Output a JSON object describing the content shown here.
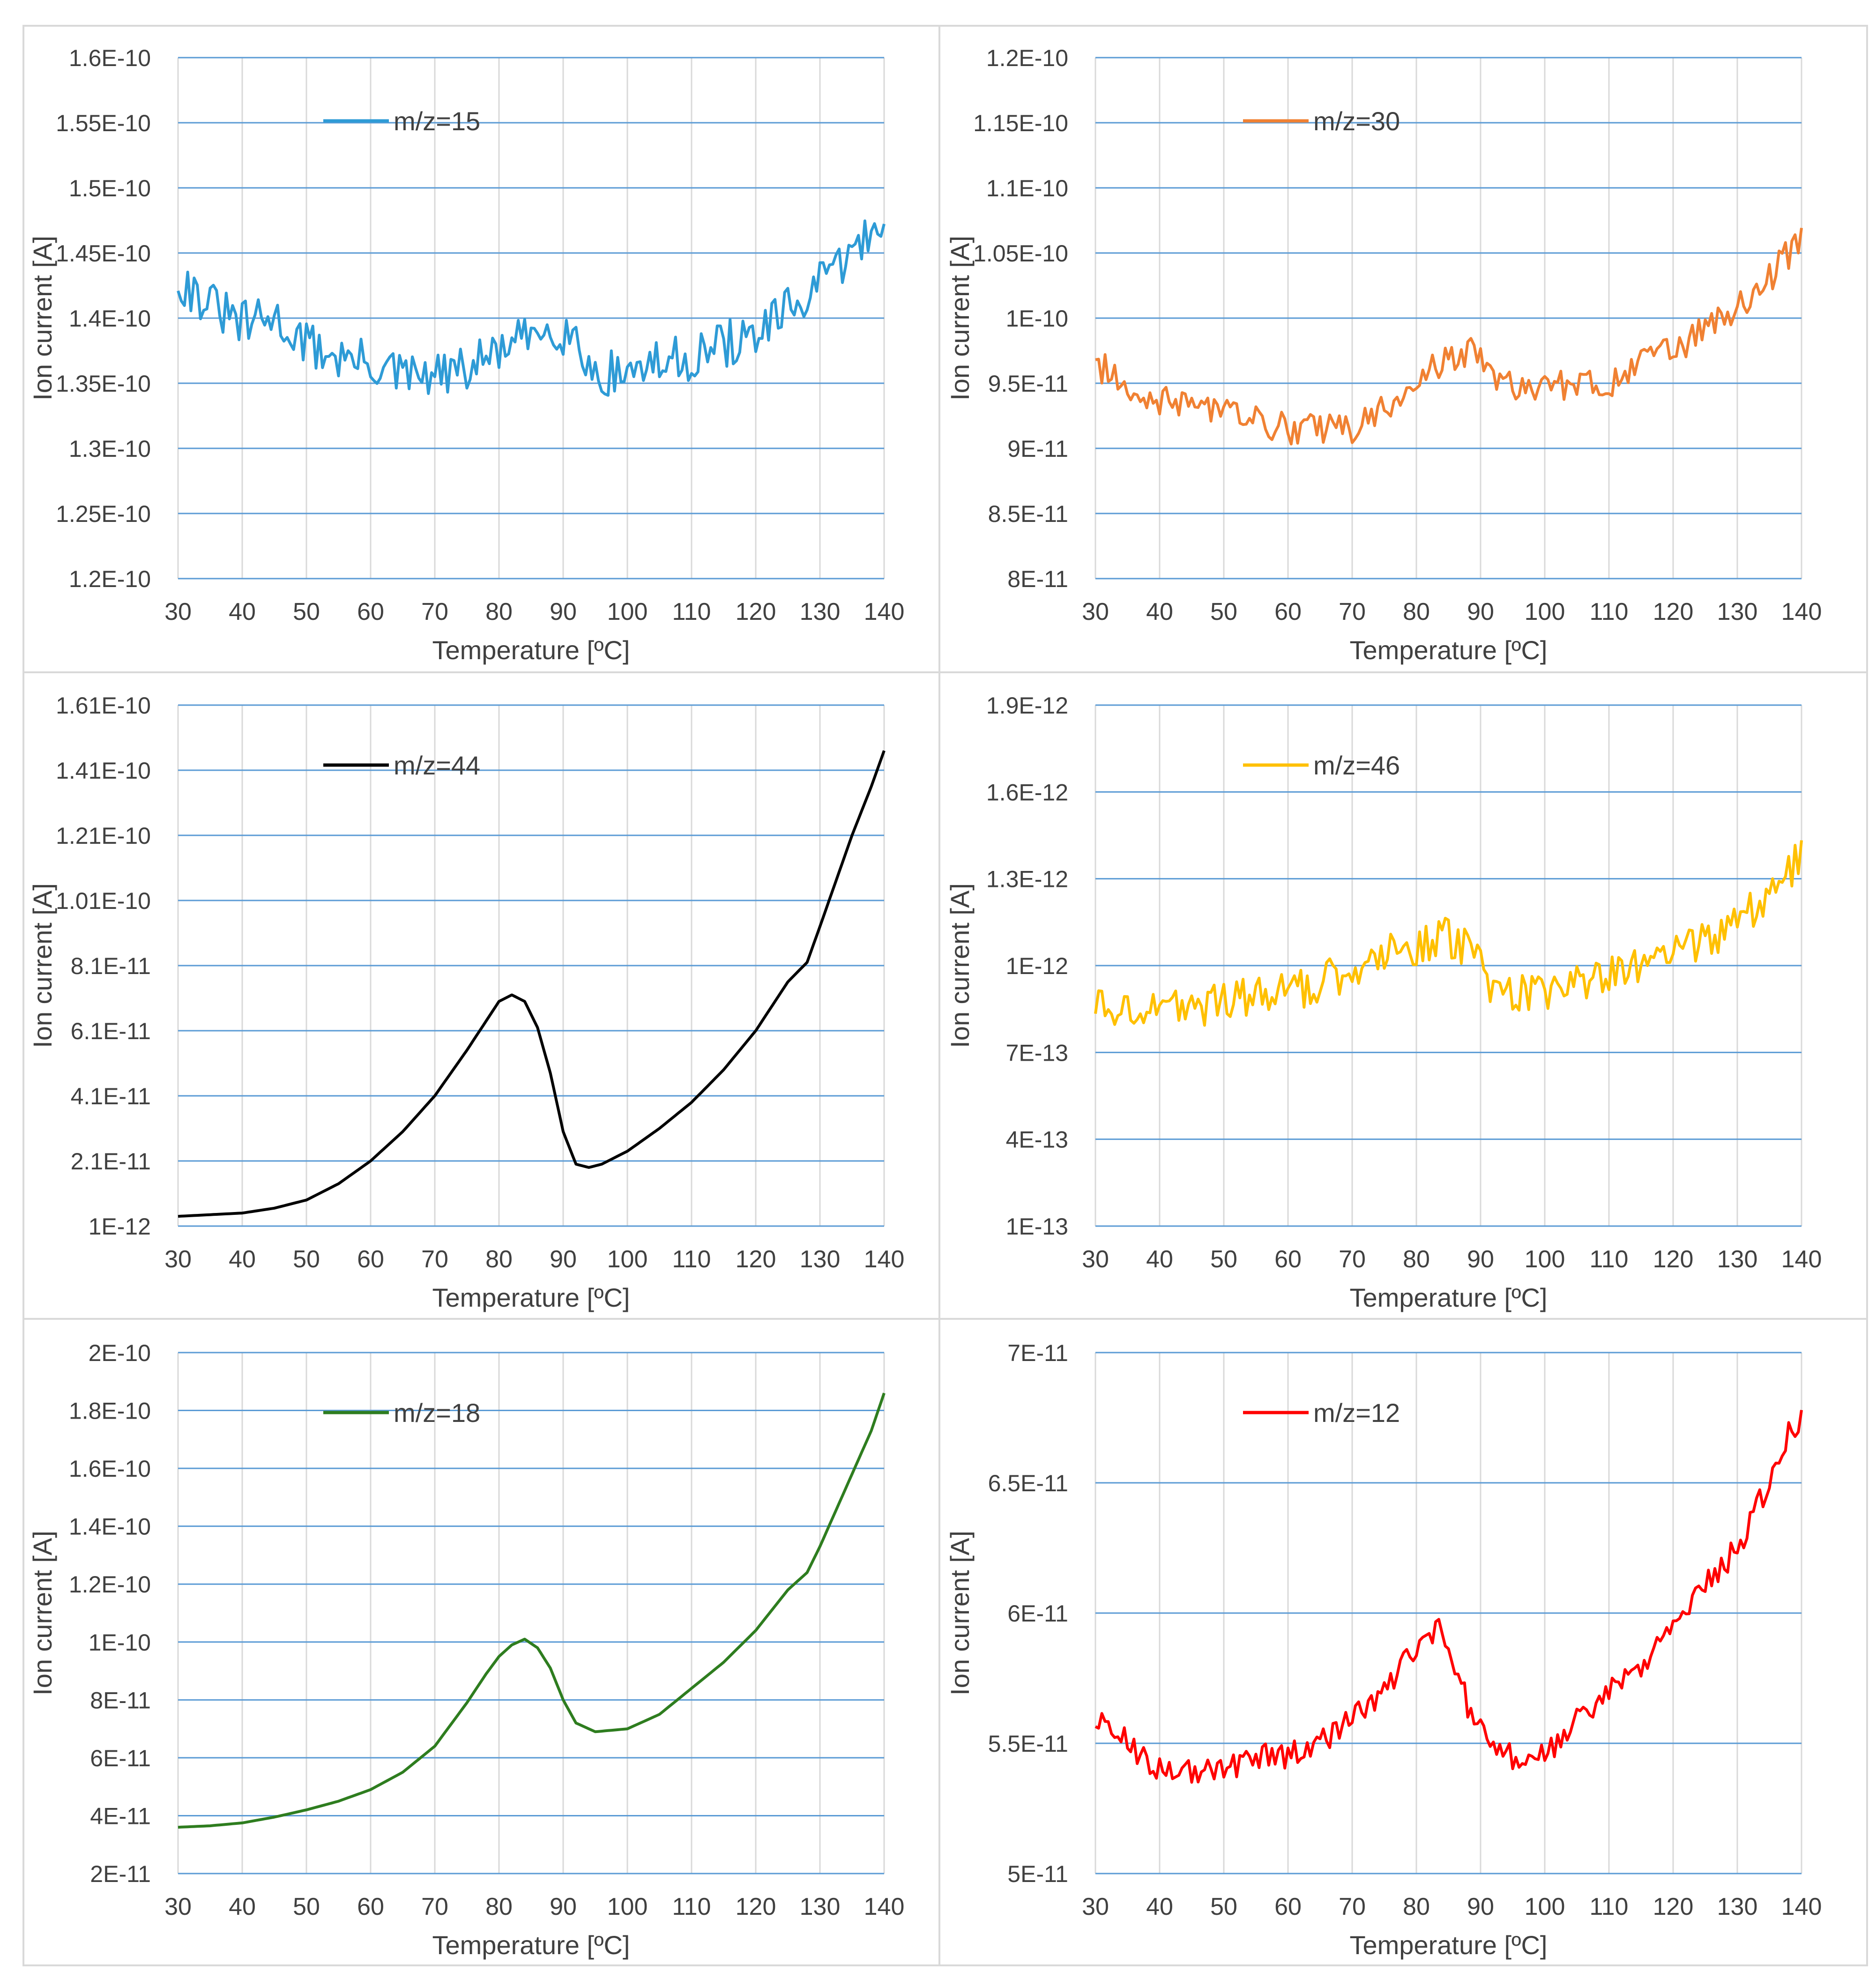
{
  "figure": {
    "x_ticks": [
      30,
      40,
      50,
      60,
      70,
      80,
      90,
      100,
      110,
      120,
      130,
      140
    ],
    "xlabel": "Temperature [ºC]",
    "ylabel": "Ion current [A]"
  },
  "chart_data": [
    {
      "type": "line",
      "panel": "top-left",
      "legend": "m/z=15",
      "color": "#2E9BD6",
      "xlabel": "Temperature [ºC]",
      "ylabel": "Ion current [A]",
      "xlim": [
        30,
        140
      ],
      "ylim": [
        1.2e-10,
        1.6e-10
      ],
      "y_ticks": [
        1.2e-10,
        1.25e-10,
        1.3e-10,
        1.35e-10,
        1.4e-10,
        1.45e-10,
        1.5e-10,
        1.55e-10,
        1.6e-10
      ],
      "y_tick_labels": [
        "1.2E-10",
        "1.25E-10",
        "1.3E-10",
        "1.35E-10",
        "1.4E-10",
        "1.45E-10",
        "1.5E-10",
        "1.55E-10",
        "1.6E-10"
      ],
      "noise": 1.8e-12,
      "x": [
        30,
        35,
        40,
        45,
        50,
        55,
        60,
        65,
        70,
        75,
        80,
        85,
        88,
        92,
        95,
        100,
        105,
        110,
        115,
        120,
        125,
        130,
        135,
        138,
        140
      ],
      "values": [
        1.43e-10,
        1.41e-10,
        1.395e-10,
        1.4e-10,
        1.38e-10,
        1.37e-10,
        1.365e-10,
        1.355e-10,
        1.355e-10,
        1.36e-10,
        1.375e-10,
        1.385e-10,
        1.395e-10,
        1.385e-10,
        1.355e-10,
        1.36e-10,
        1.365e-10,
        1.37e-10,
        1.38e-10,
        1.385e-10,
        1.405e-10,
        1.425e-10,
        1.45e-10,
        1.465e-10,
        1.485e-10
      ]
    },
    {
      "type": "line",
      "panel": "top-right",
      "legend": "m/z=30",
      "color": "#F08133",
      "xlabel": "Temperature [ºC]",
      "ylabel": "Ion current [A]",
      "xlim": [
        30,
        140
      ],
      "ylim": [
        8e-11,
        1.2e-10
      ],
      "y_ticks": [
        8e-11,
        8.5e-11,
        9e-11,
        9.5e-11,
        1e-10,
        1.05e-10,
        1.1e-10,
        1.15e-10,
        1.2e-10
      ],
      "y_tick_labels": [
        "8E-11",
        "8.5E-11",
        "9E-11",
        "9.5E-11",
        "1E-10",
        "1.05E-10",
        "1.1E-10",
        "1.15E-10",
        "1.2E-10"
      ],
      "noise": 1.2e-12,
      "x": [
        30,
        35,
        40,
        45,
        50,
        55,
        60,
        65,
        70,
        75,
        80,
        85,
        88,
        92,
        95,
        100,
        105,
        110,
        115,
        120,
        125,
        130,
        135,
        138,
        140
      ],
      "values": [
        9.65e-11,
        9.5e-11,
        9.35e-11,
        9.35e-11,
        9.3e-11,
        9.2e-11,
        9.15e-11,
        9.15e-11,
        9.15e-11,
        9.3e-11,
        9.55e-11,
        9.7e-11,
        9.75e-11,
        9.55e-11,
        9.5e-11,
        9.45e-11,
        9.5e-11,
        9.5e-11,
        9.65e-11,
        9.75e-11,
        9.9e-11,
        1.01e-10,
        1.03e-10,
        1.05e-10,
        1.065e-10
      ]
    },
    {
      "type": "line",
      "panel": "middle-left",
      "legend": "m/z=44",
      "color": "#000000",
      "xlabel": "Temperature [ºC]",
      "ylabel": "Ion current [A]",
      "xlim": [
        30,
        140
      ],
      "ylim": [
        1e-12,
        1.61e-10
      ],
      "y_ticks": [
        1e-12,
        2.1e-11,
        4.1e-11,
        6.1e-11,
        8.1e-11,
        1.01e-10,
        1.21e-10,
        1.41e-10,
        1.61e-10
      ],
      "y_tick_labels": [
        "1E-12",
        "2.1E-11",
        "4.1E-11",
        "6.1E-11",
        "8.1E-11",
        "1.01E-10",
        "1.21E-10",
        "1.41E-10",
        "1.61E-10"
      ],
      "noise": 0,
      "x": [
        30,
        35,
        40,
        45,
        50,
        55,
        60,
        65,
        70,
        75,
        78,
        80,
        82,
        84,
        86,
        88,
        90,
        92,
        94,
        96,
        100,
        105,
        110,
        115,
        120,
        125,
        128,
        130,
        135,
        138,
        140
      ],
      "values": [
        4e-12,
        4.5e-12,
        5e-12,
        6.5e-12,
        9e-12,
        1.4e-11,
        2.1e-11,
        3e-11,
        4.1e-11,
        5.5e-11,
        6.4e-11,
        7e-11,
        7.2e-11,
        7e-11,
        6.2e-11,
        4.8e-11,
        3e-11,
        2e-11,
        1.9e-11,
        2e-11,
        2.4e-11,
        3.1e-11,
        3.9e-11,
        4.9e-11,
        6.1e-11,
        7.6e-11,
        8.2e-11,
        9.3e-11,
        1.21e-10,
        1.36e-10,
        1.47e-10
      ]
    },
    {
      "type": "line",
      "panel": "middle-right",
      "legend": "m/z=46",
      "color": "#FFC000",
      "xlabel": "Temperature [ºC]",
      "ylabel": "Ion current [A]",
      "xlim": [
        30,
        140
      ],
      "ylim": [
        1e-13,
        1.9e-12
      ],
      "y_ticks": [
        1e-13,
        4e-13,
        7e-13,
        1e-12,
        1.3e-12,
        1.6e-12,
        1.9e-12
      ],
      "y_tick_labels": [
        "1E-13",
        "4E-13",
        "7E-13",
        "1E-12",
        "1.3E-12",
        "1.6E-12",
        "1.9E-12"
      ],
      "noise": 7e-14,
      "x": [
        30,
        35,
        40,
        45,
        50,
        55,
        60,
        65,
        70,
        75,
        80,
        85,
        88,
        92,
        95,
        100,
        105,
        110,
        115,
        120,
        125,
        130,
        135,
        138,
        140
      ],
      "values": [
        8.5e-13,
        8.6e-13,
        8.6e-13,
        8.5e-13,
        8.8e-13,
        8.9e-13,
        9.1e-13,
        9.4e-13,
        9.9e-13,
        1.04e-12,
        1.06e-12,
        1.1e-12,
        1.05e-12,
        9.3e-13,
        9e-13,
        9e-13,
        9.3e-13,
        9.6e-13,
        1e-12,
        1.04e-12,
        1.09e-12,
        1.15e-12,
        1.23e-12,
        1.32e-12,
        1.4e-12
      ]
    },
    {
      "type": "line",
      "panel": "bottom-left",
      "legend": "m/z=18",
      "color": "#2E7D1F",
      "xlabel": "Temperature [ºC]",
      "ylabel": "Ion current [A]",
      "xlim": [
        30,
        140
      ],
      "ylim": [
        2e-11,
        2e-10
      ],
      "y_ticks": [
        2e-11,
        4e-11,
        6e-11,
        8e-11,
        1e-10,
        1.2e-10,
        1.4e-10,
        1.6e-10,
        1.8e-10,
        2e-10
      ],
      "y_tick_labels": [
        "2E-11",
        "4E-11",
        "6E-11",
        "8E-11",
        "1E-10",
        "1.2E-10",
        "1.4E-10",
        "1.6E-10",
        "1.8E-10",
        "2E-10"
      ],
      "noise": 0,
      "x": [
        30,
        35,
        40,
        45,
        50,
        55,
        60,
        65,
        70,
        75,
        78,
        80,
        82,
        84,
        86,
        88,
        90,
        92,
        95,
        100,
        105,
        110,
        115,
        120,
        125,
        128,
        130,
        135,
        138,
        140
      ],
      "values": [
        3.6e-11,
        3.65e-11,
        3.75e-11,
        3.95e-11,
        4.2e-11,
        4.5e-11,
        4.9e-11,
        5.5e-11,
        6.4e-11,
        7.9e-11,
        8.9e-11,
        9.5e-11,
        9.9e-11,
        1.01e-10,
        9.8e-11,
        9.1e-11,
        8e-11,
        7.2e-11,
        6.9e-11,
        7e-11,
        7.5e-11,
        8.4e-11,
        9.3e-11,
        1.04e-10,
        1.18e-10,
        1.24e-10,
        1.33e-10,
        1.58e-10,
        1.73e-10,
        1.86e-10
      ]
    },
    {
      "type": "line",
      "panel": "bottom-right",
      "legend": "m/z=12",
      "color": "#FF0000",
      "xlabel": "Temperature [ºC]",
      "ylabel": "Ion current [A]",
      "xlim": [
        30,
        140
      ],
      "ylim": [
        5e-11,
        7e-11
      ],
      "y_ticks": [
        5e-11,
        5.5e-11,
        6e-11,
        6.5e-11,
        7e-11
      ],
      "y_tick_labels": [
        "5E-11",
        "5.5E-11",
        "6E-11",
        "6.5E-11",
        "7E-11"
      ],
      "noise": 5e-13,
      "x": [
        30,
        35,
        40,
        45,
        50,
        55,
        60,
        65,
        70,
        75,
        78,
        80,
        82,
        84,
        86,
        88,
        90,
        92,
        95,
        100,
        105,
        110,
        115,
        120,
        125,
        130,
        135,
        138,
        140
      ],
      "values": [
        5.6e-11,
        5.5e-11,
        5.4e-11,
        5.4e-11,
        5.4e-11,
        5.45e-11,
        5.45e-11,
        5.5e-11,
        5.6e-11,
        5.7e-11,
        5.8e-11,
        5.88e-11,
        5.9e-11,
        5.95e-11,
        5.8e-11,
        5.65e-11,
        5.55e-11,
        5.5e-11,
        5.45e-11,
        5.45e-11,
        5.6e-11,
        5.7e-11,
        5.8e-11,
        5.95e-11,
        6.1e-11,
        6.25e-11,
        6.5e-11,
        6.7e-11,
        6.75e-11
      ]
    }
  ]
}
